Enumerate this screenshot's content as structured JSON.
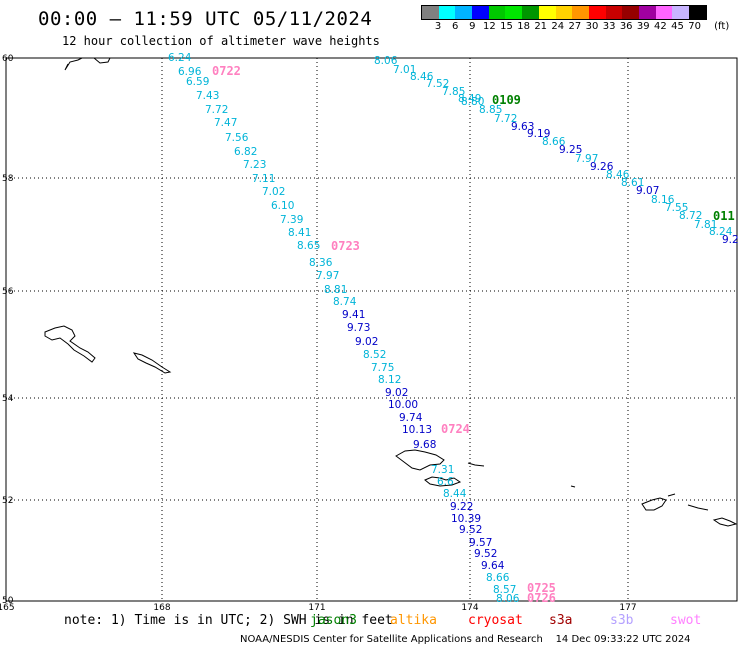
{
  "title": "00:00 – 11:59 UTC 05/11/2024",
  "subtitle": "12 hour collection of altimeter wave heights",
  "colorbar": {
    "unit": "(ft)",
    "colors": [
      "#808080",
      "#00ffff",
      "#00b4ff",
      "#0000ff",
      "#00c800",
      "#00e600",
      "#009600",
      "#ffff00",
      "#ffd200",
      "#ff9600",
      "#ff0000",
      "#c80000",
      "#960000",
      "#a000a0",
      "#ff64ff",
      "#c8b4ff",
      "#000000"
    ],
    "labels": [
      "3",
      "6",
      "9",
      "12",
      "15",
      "18",
      "21",
      "24",
      "27",
      "30",
      "33",
      "36",
      "39",
      "42",
      "45",
      "70"
    ]
  },
  "axes": {
    "x_ticks": [
      "165",
      "168",
      "171",
      "174",
      "177"
    ],
    "y_ticks": [
      "60",
      "58",
      "56",
      "54",
      "52",
      "50"
    ]
  },
  "tracks": [
    {
      "time_labels": [
        {
          "text": "0722",
          "color": "#ff80c0"
        },
        {
          "text": "0723",
          "color": "#ff80c0"
        },
        {
          "text": "0724",
          "color": "#ff80c0"
        },
        {
          "text": "0725",
          "color": "#ff80c0"
        },
        {
          "text": "0726",
          "color": "#ff80c0"
        }
      ],
      "points": [
        {
          "v": "6.24",
          "c": "#00b4d8"
        },
        {
          "v": "6.96",
          "c": "#00b4d8"
        },
        {
          "v": "6.59",
          "c": "#00b4d8"
        },
        {
          "v": "7.43",
          "c": "#00b4d8"
        },
        {
          "v": "7.72",
          "c": "#00b4d8"
        },
        {
          "v": "7.47",
          "c": "#00b4d8"
        },
        {
          "v": "7.56",
          "c": "#00b4d8"
        },
        {
          "v": "6.82",
          "c": "#00b4d8"
        },
        {
          "v": "7.23",
          "c": "#00b4d8"
        },
        {
          "v": "7.11",
          "c": "#00b4d8"
        },
        {
          "v": "7.02",
          "c": "#00b4d8"
        },
        {
          "v": "6.10",
          "c": "#00b4d8"
        },
        {
          "v": "7.39",
          "c": "#00b4d8"
        },
        {
          "v": "8.41",
          "c": "#00b4d8"
        },
        {
          "v": "8.65",
          "c": "#00b4d8"
        },
        {
          "v": "8.36",
          "c": "#00b4d8"
        },
        {
          "v": "7.97",
          "c": "#00b4d8"
        },
        {
          "v": "8.81",
          "c": "#00b4d8"
        },
        {
          "v": "8.74",
          "c": "#00b4d8"
        },
        {
          "v": "9.41",
          "c": "#0000c8"
        },
        {
          "v": "9.73",
          "c": "#0000c8"
        },
        {
          "v": "9.02",
          "c": "#0000c8"
        },
        {
          "v": "8.52",
          "c": "#00b4d8"
        },
        {
          "v": "7.75",
          "c": "#00b4d8"
        },
        {
          "v": "8.12",
          "c": "#00b4d8"
        },
        {
          "v": "9.02",
          "c": "#0000c8"
        },
        {
          "v": "10.00",
          "c": "#0000c8"
        },
        {
          "v": "9.74",
          "c": "#0000c8"
        },
        {
          "v": "10.13",
          "c": "#0000c8"
        },
        {
          "v": "9.68",
          "c": "#0000c8"
        },
        {
          "v": "7.31",
          "c": "#00b4d8"
        },
        {
          "v": "6.6",
          "c": "#00b4d8"
        },
        {
          "v": "8.44",
          "c": "#00b4d8"
        },
        {
          "v": "9.22",
          "c": "#0000c8"
        },
        {
          "v": "10.39",
          "c": "#0000c8"
        },
        {
          "v": "9.52",
          "c": "#0000c8"
        },
        {
          "v": "9.57",
          "c": "#0000c8"
        },
        {
          "v": "9.52",
          "c": "#0000c8"
        },
        {
          "v": "9.64",
          "c": "#0000c8"
        },
        {
          "v": "8.66",
          "c": "#00b4d8"
        },
        {
          "v": "8.57",
          "c": "#00b4d8"
        },
        {
          "v": "8.06",
          "c": "#00b4d8"
        }
      ]
    },
    {
      "time_labels": [
        {
          "text": "0109",
          "color": "#008000"
        },
        {
          "text": "011",
          "color": "#008000"
        }
      ],
      "points": [
        {
          "v": "8.06",
          "c": "#00b4d8"
        },
        {
          "v": "7.01",
          "c": "#00b4d8"
        },
        {
          "v": "8.46",
          "c": "#00b4d8"
        },
        {
          "v": "7.52",
          "c": "#00b4d8"
        },
        {
          "v": "7.85",
          "c": "#00b4d8"
        },
        {
          "v": "8.49",
          "c": "#00b4d8"
        },
        {
          "v": "8.80",
          "c": "#00b4d8"
        },
        {
          "v": "8.85",
          "c": "#00b4d8"
        },
        {
          "v": "7.72",
          "c": "#00b4d8"
        },
        {
          "v": "9.63",
          "c": "#0000c8"
        },
        {
          "v": "9.19",
          "c": "#0000c8"
        },
        {
          "v": "8.66",
          "c": "#00b4d8"
        },
        {
          "v": "9.25",
          "c": "#0000c8"
        },
        {
          "v": "7.97",
          "c": "#00b4d8"
        },
        {
          "v": "9.26",
          "c": "#0000c8"
        },
        {
          "v": "8.46",
          "c": "#00b4d8"
        },
        {
          "v": "8.61",
          "c": "#00b4d8"
        },
        {
          "v": "9.07",
          "c": "#0000c8"
        },
        {
          "v": "8.16",
          "c": "#00b4d8"
        },
        {
          "v": "7.55",
          "c": "#00b4d8"
        },
        {
          "v": "8.72",
          "c": "#00b4d8"
        },
        {
          "v": "7.81",
          "c": "#00b4d8"
        },
        {
          "v": "8.24",
          "c": "#00b4d8"
        },
        {
          "v": "9.2",
          "c": "#0000c8"
        }
      ]
    }
  ],
  "note": "note: 1) Time is in UTC; 2) SWH is in feet",
  "satellites": [
    {
      "name": "jason3",
      "color": "#008000"
    },
    {
      "name": "altika",
      "color": "#ff9600"
    },
    {
      "name": "cryosat",
      "color": "#ff0000"
    },
    {
      "name": "s3a",
      "color": "#a00000"
    },
    {
      "name": "s3b",
      "color": "#b4a0ff"
    },
    {
      "name": "swot",
      "color": "#ff80ff"
    }
  ],
  "footer": "NOAA/NESDIS Center for Satellite Applications and Research    14 Dec 09:33:22 UTC 2024"
}
